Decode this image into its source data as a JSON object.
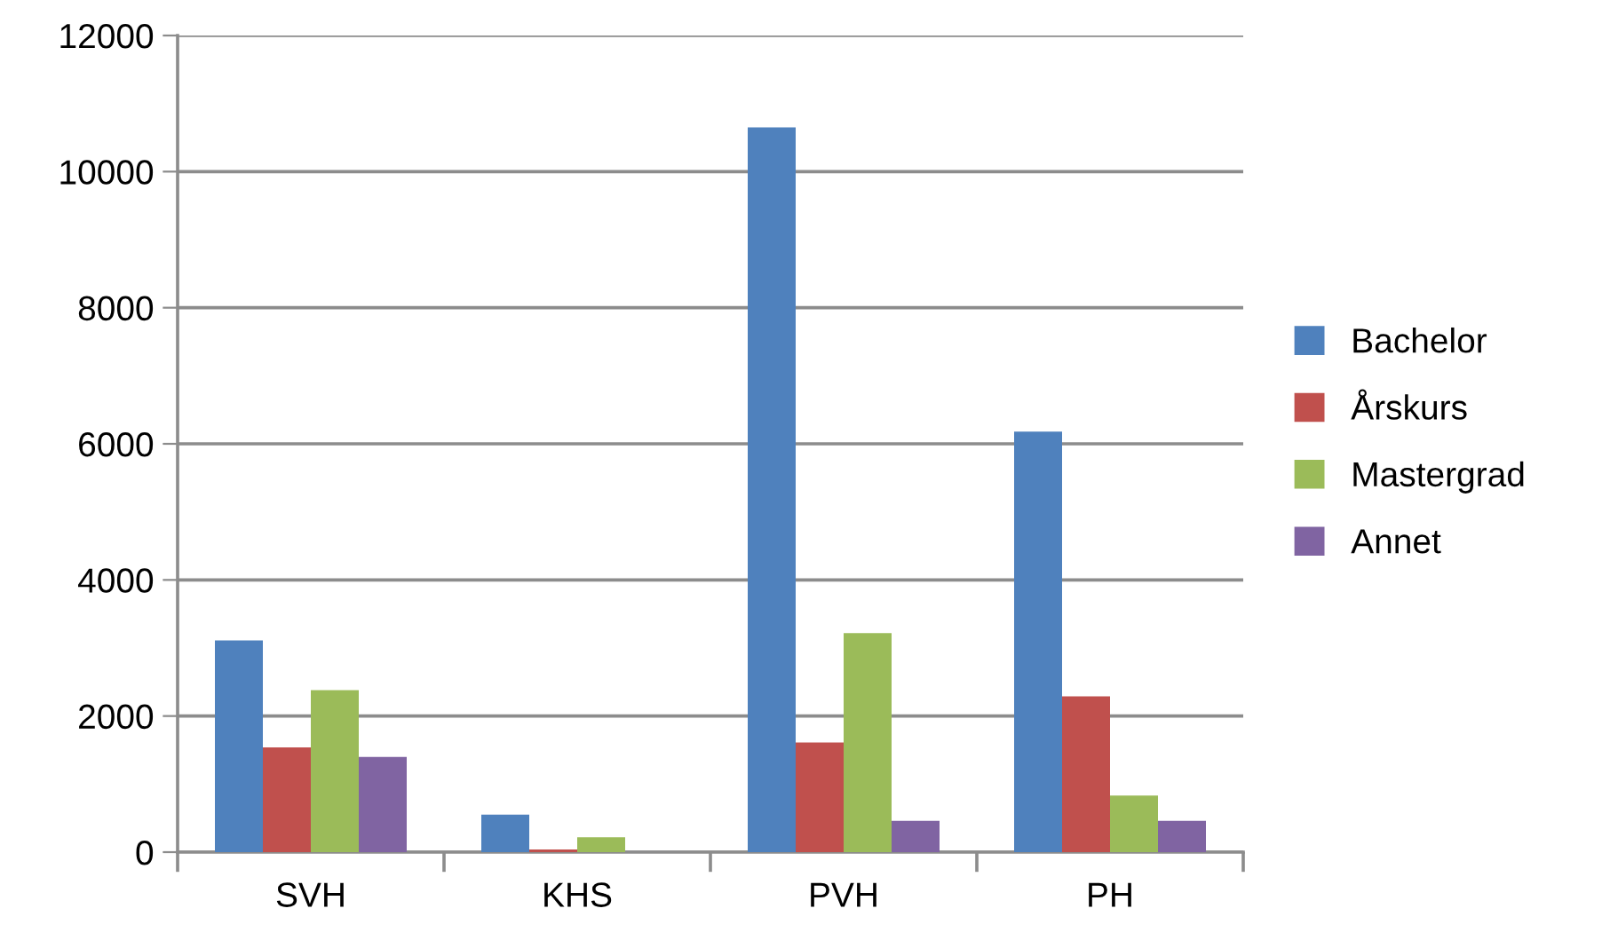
{
  "chart_data": {
    "type": "bar",
    "categories": [
      "SVH",
      "KHS",
      "PVH",
      "PH"
    ],
    "series": [
      {
        "name": "Bachelor",
        "color": "#4f81bd",
        "values": [
          3110,
          550,
          10650,
          6180
        ]
      },
      {
        "name": "Årskurs",
        "color": "#c0504d",
        "values": [
          1540,
          40,
          1610,
          2290
        ]
      },
      {
        "name": "Mastergrad",
        "color": "#9bbb59",
        "values": [
          2380,
          220,
          3220,
          830
        ]
      },
      {
        "name": "Annet",
        "color": "#8064a2",
        "values": [
          1400,
          0,
          460,
          460
        ]
      }
    ],
    "ylim": [
      0,
      12000
    ],
    "yticks": [
      0,
      2000,
      4000,
      6000,
      8000,
      10000,
      12000
    ],
    "grid": "y",
    "legend": "right"
  }
}
